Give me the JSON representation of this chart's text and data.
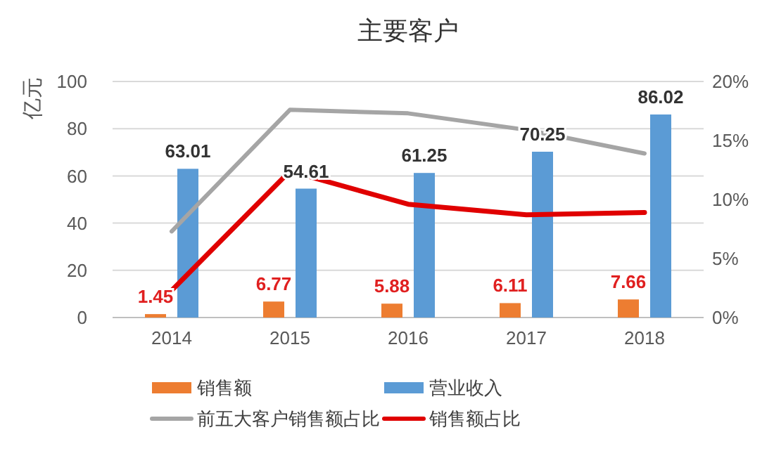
{
  "chart_data": {
    "type": "bar",
    "title": "主要客户",
    "ylabel": "亿元",
    "categories": [
      "2014",
      "2015",
      "2016",
      "2017",
      "2018"
    ],
    "series": [
      {
        "name": "销售额",
        "color": "#ed7d31",
        "values": [
          1.45,
          6.77,
          5.88,
          6.11,
          7.66
        ],
        "value_labels": [
          "1.45",
          "6.77",
          "5.88",
          "6.11",
          "7.66"
        ]
      },
      {
        "name": "营业收入",
        "color": "#5b9bd5",
        "values": [
          63.01,
          54.61,
          61.25,
          70.25,
          86.02
        ],
        "value_labels": [
          "63.01",
          "54.61",
          "61.25",
          "70.25",
          "86.02"
        ]
      },
      {
        "name": "前五大客户销售额占比",
        "type": "line",
        "axis": "y2",
        "color": "#a5a5a5",
        "values": [
          7.3,
          17.6,
          17.3,
          15.9,
          13.9
        ]
      },
      {
        "name": "销售额占比",
        "type": "line",
        "axis": "y2",
        "color": "#e00000",
        "values": [
          2.3,
          12.4,
          9.6,
          8.7,
          8.9
        ]
      }
    ],
    "ylim": [
      0,
      100
    ],
    "yticks": [
      0,
      20,
      40,
      60,
      80,
      100
    ],
    "y2lim": [
      0,
      20
    ],
    "y2ticks": [
      {
        "value": 0,
        "label": "0%"
      },
      {
        "value": 5,
        "label": "5%"
      },
      {
        "value": 10,
        "label": "10%"
      },
      {
        "value": 15,
        "label": "15%"
      },
      {
        "value": 20,
        "label": "20%"
      }
    ],
    "grid": "y",
    "legend": "bottom",
    "marker": "none",
    "line_style": "solid"
  }
}
